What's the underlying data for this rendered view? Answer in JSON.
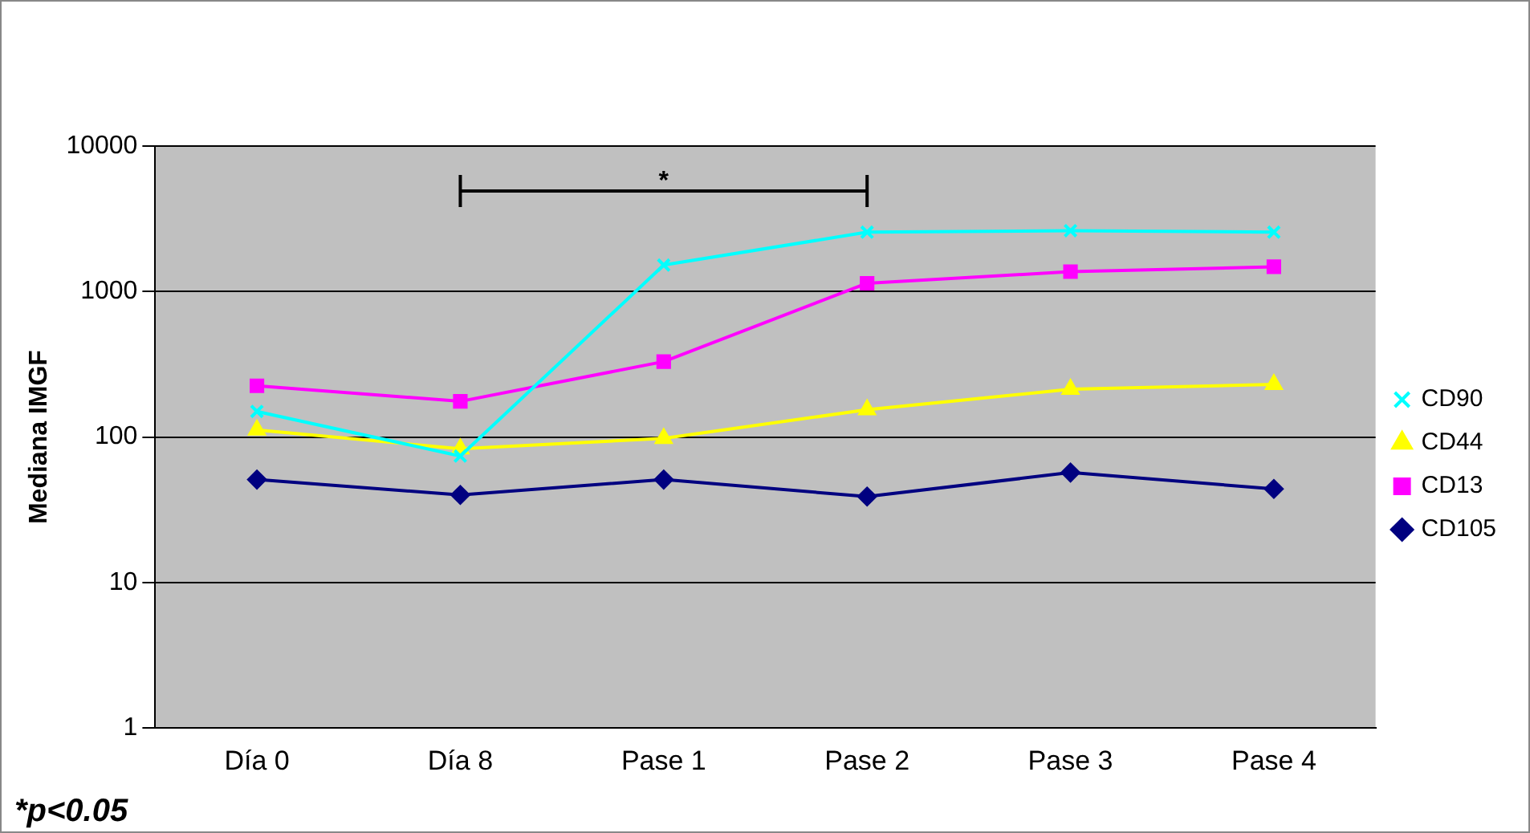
{
  "chart_data": {
    "type": "line",
    "ylabel": "Mediana IMGF",
    "categories": [
      "Día 0",
      "Día 8",
      "Pase 1",
      "Pase 2",
      "Pase 3",
      "Pase 4"
    ],
    "series": [
      {
        "name": "CD105",
        "color": "#000080",
        "marker": "diamond",
        "values": [
          51,
          40,
          51,
          39,
          57,
          44
        ]
      },
      {
        "name": "CD13",
        "color": "#ff00ff",
        "marker": "square",
        "values": [
          225,
          176,
          330,
          1140,
          1370,
          1480
        ]
      },
      {
        "name": "CD44",
        "color": "#ffff00",
        "marker": "triangle",
        "values": [
          112,
          83,
          98,
          154,
          213,
          230
        ]
      },
      {
        "name": "CD90",
        "color": "#00ffff",
        "marker": "cross",
        "values": [
          150,
          74,
          1520,
          2560,
          2620,
          2560
        ]
      }
    ],
    "log": "y",
    "ylim": [
      1,
      10000
    ],
    "yticks": [
      1,
      10,
      100,
      1000,
      10000
    ],
    "grid": "y",
    "legend": "right",
    "annotations": [
      "*",
      "*p<0.05"
    ]
  }
}
